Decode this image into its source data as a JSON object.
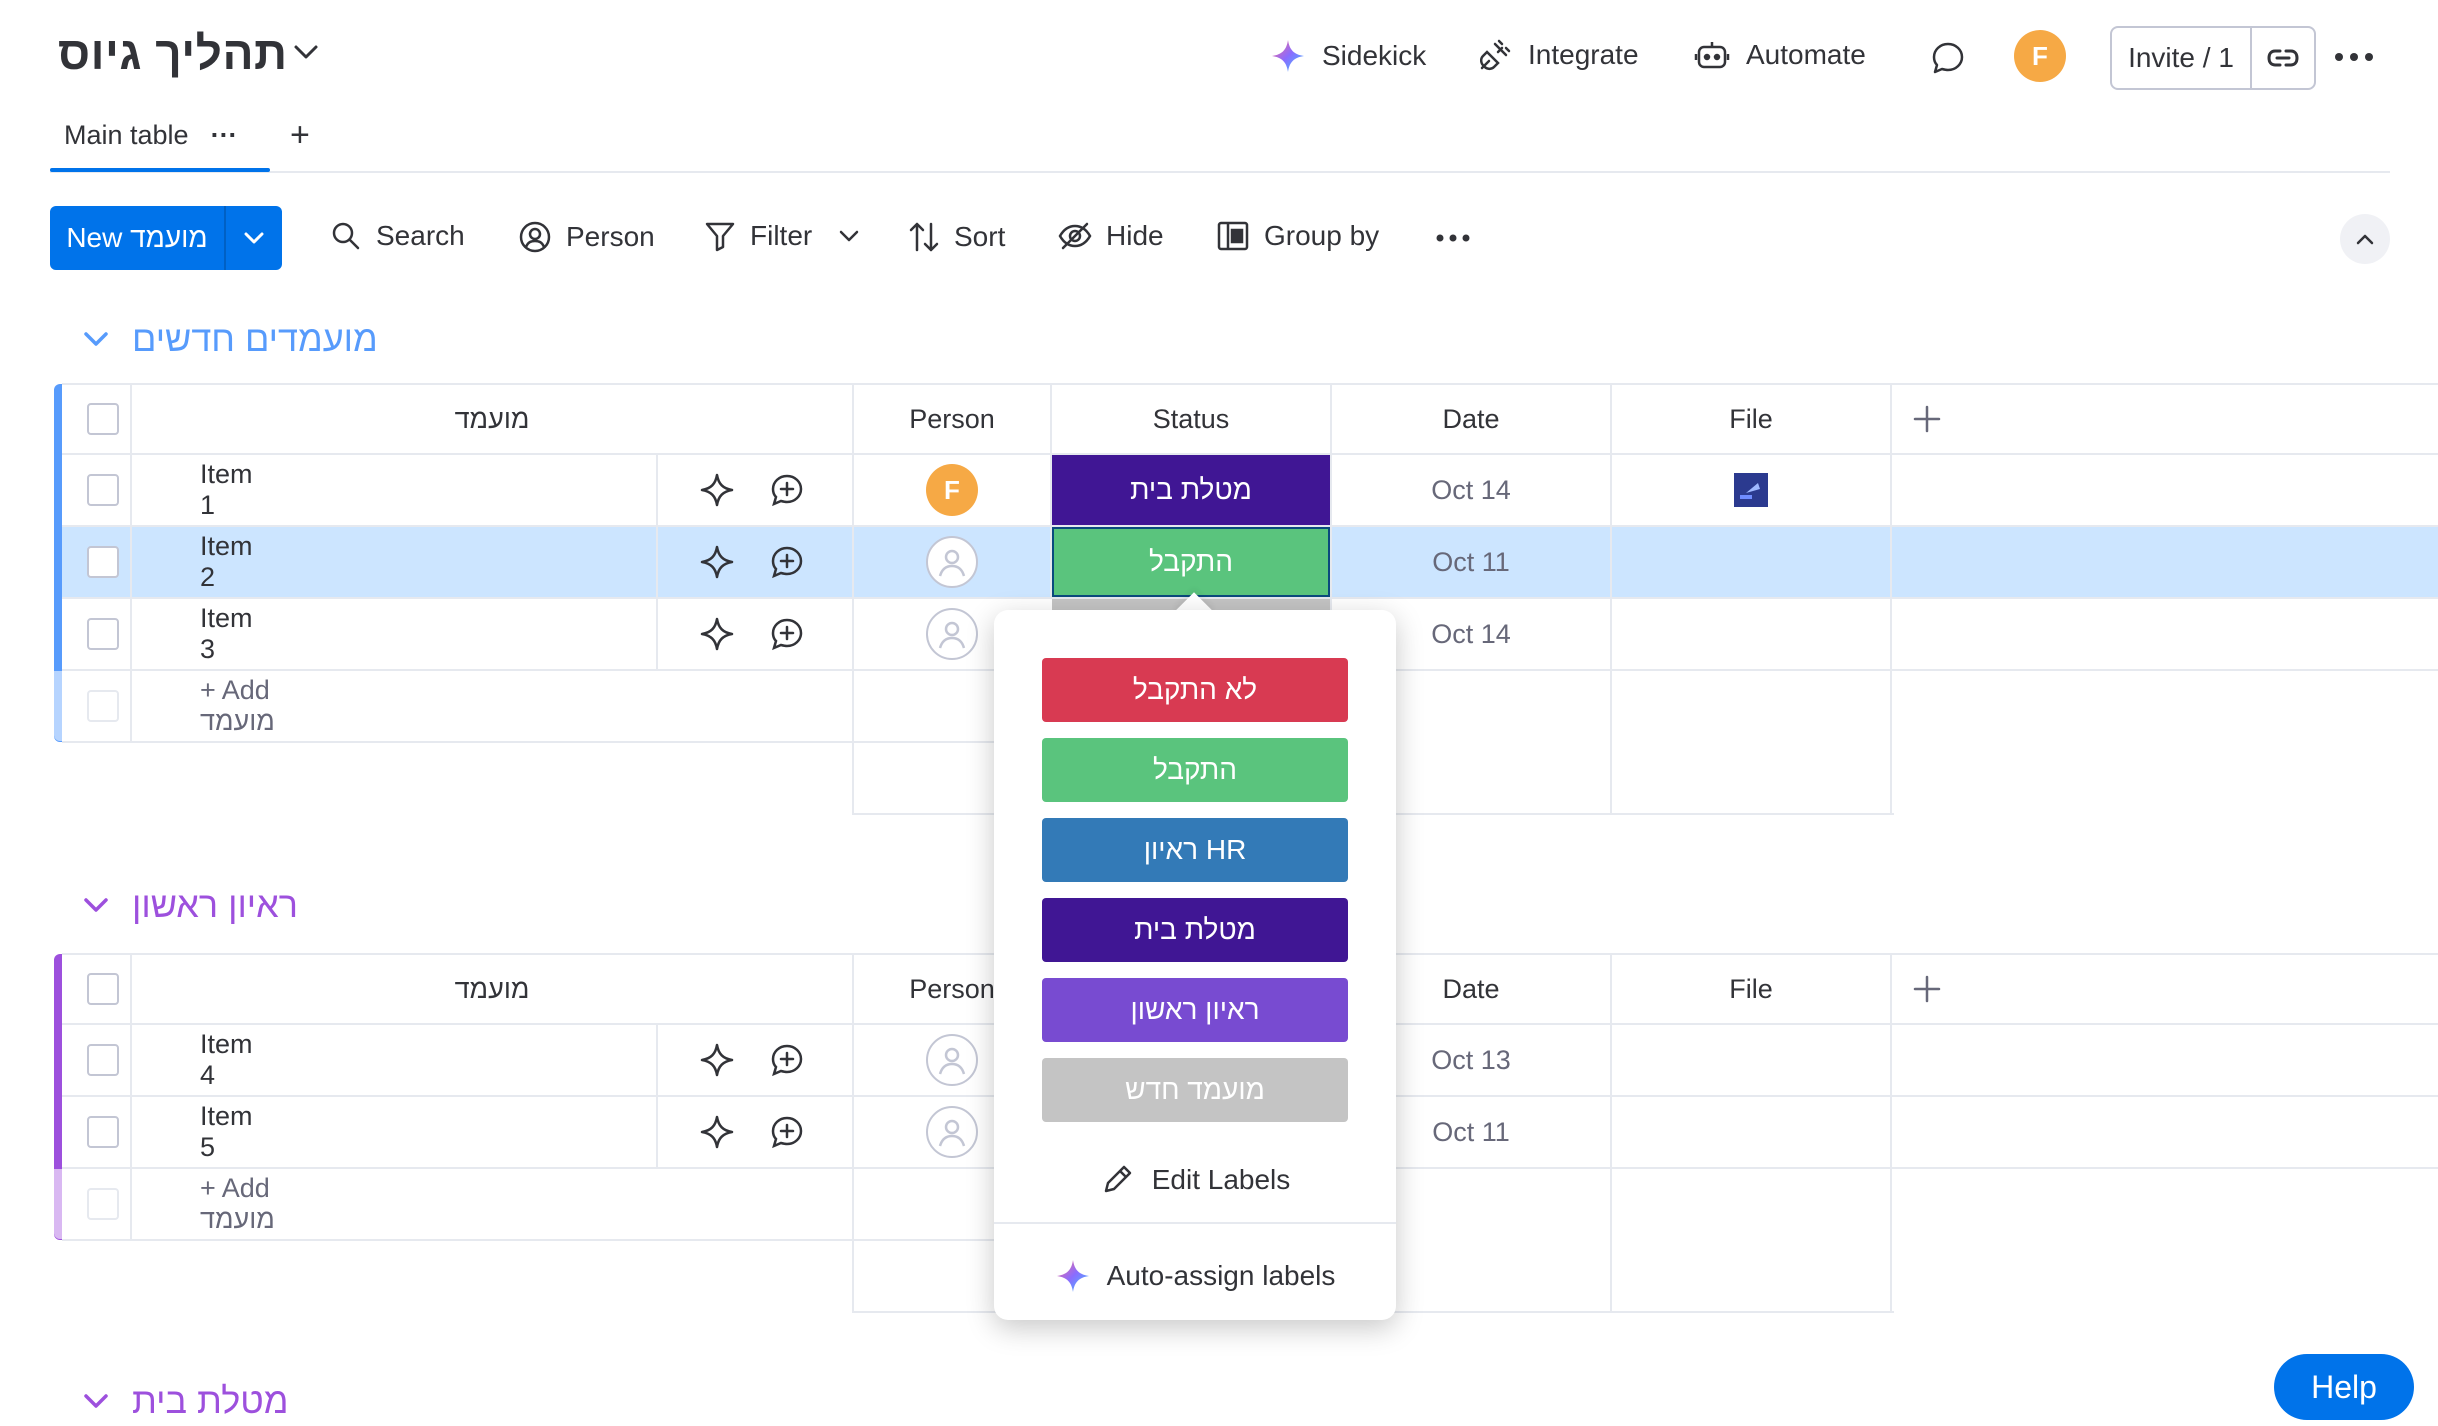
{
  "board": {
    "title": "תהליך גיוס"
  },
  "header": {
    "sidekick": "Sidekick",
    "integrate": "Integrate",
    "automate": "Automate",
    "avatar_initial": "F",
    "invite": "Invite / 1"
  },
  "tabs": {
    "main": "Main table",
    "more": "···",
    "add": "+"
  },
  "toolbar": {
    "new_label": "New מועמד",
    "search": "Search",
    "person": "Person",
    "filter": "Filter",
    "sort": "Sort",
    "hide": "Hide",
    "group_by": "Group by"
  },
  "columns": {
    "name": "מועמד",
    "person": "Person",
    "status": "Status",
    "date": "Date",
    "file": "File"
  },
  "groups": [
    {
      "title": "מועמדים חדשים",
      "color": "#579bfc",
      "add_label": "+ Add מועמד",
      "rows": [
        {
          "name": "Item 1",
          "status": "מטלת בית",
          "status_color": "#401694",
          "date": "Oct 14"
        },
        {
          "name": "Item 2",
          "status": "התקבל",
          "status_color": "#5ac47d",
          "date": "Oct 11"
        },
        {
          "name": "Item 3",
          "status": "",
          "status_color": "#c4c4c4",
          "date": "Oct 14"
        }
      ]
    },
    {
      "title": "ראיון ראשון",
      "color": "#9d50dd",
      "add_label": "+ Add מועמד",
      "rows": [
        {
          "name": "Item 4",
          "date": "Oct 13"
        },
        {
          "name": "Item 5",
          "date": "Oct 11"
        }
      ]
    },
    {
      "title": "מטלת בית",
      "color": "#9d50dd"
    }
  ],
  "status_popup": {
    "options": [
      {
        "label": "לא התקבל",
        "color": "#d83a52"
      },
      {
        "label": "התקבל",
        "color": "#5ac47d"
      },
      {
        "label": "ראיון HR",
        "color": "#337ab7"
      },
      {
        "label": "מטלת בית",
        "color": "#401694"
      },
      {
        "label": "ראיון ראשון",
        "color": "#784bd1"
      },
      {
        "label": "מועמד חדש",
        "color": "#c4c4c4"
      }
    ],
    "edit_labels": "Edit Labels",
    "auto_assign": "Auto-assign labels"
  },
  "help": "Help"
}
